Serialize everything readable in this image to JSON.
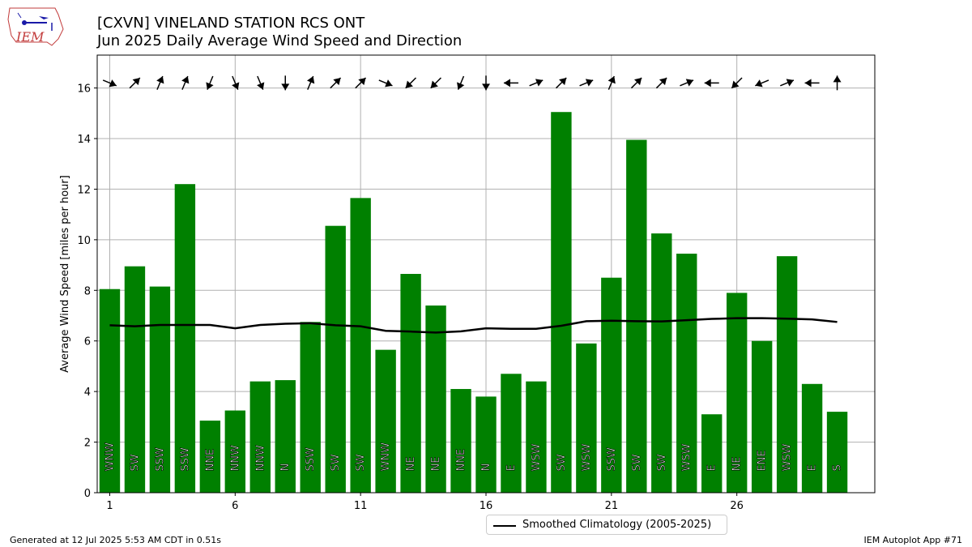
{
  "header": {
    "title_line1": "[CXVN] VINELAND STATION RCS  ONT",
    "title_line2": "Jun 2025 Daily Average Wind Speed and Direction",
    "logo_text": "IEM"
  },
  "footer": {
    "left": "Generated at 12 Jul 2025 5:53 AM CDT in 0.51s",
    "right": "IEM Autoplot App #71"
  },
  "colors": {
    "bar": "#008000",
    "line": "#000000",
    "grid": "#b0b0b0"
  },
  "chart_data": {
    "type": "bar",
    "ylabel": "Average Wind Speed [miles per hour]",
    "xlabel": "",
    "ylim": [
      0,
      17.3
    ],
    "xlim": [
      0.5,
      31.5
    ],
    "yticks": [
      0,
      2,
      4,
      6,
      8,
      10,
      12,
      14,
      16
    ],
    "xticks": [
      1,
      6,
      11,
      16,
      21,
      26
    ],
    "grid": true,
    "legend_placement": "bottom-center",
    "days": [
      1,
      2,
      3,
      4,
      5,
      6,
      7,
      8,
      9,
      10,
      11,
      12,
      13,
      14,
      15,
      16,
      17,
      18,
      19,
      20,
      21,
      22,
      23,
      24,
      25,
      26,
      27,
      28,
      29,
      30
    ],
    "values": [
      8.05,
      8.95,
      8.15,
      12.2,
      2.85,
      3.25,
      4.4,
      4.45,
      6.75,
      10.55,
      11.65,
      5.65,
      8.65,
      7.4,
      4.1,
      3.8,
      4.7,
      4.4,
      15.05,
      5.9,
      8.5,
      13.95,
      10.25,
      9.45,
      3.1,
      7.9,
      6.0,
      9.35,
      4.3,
      3.2
    ],
    "directions": [
      "WNW",
      "SW",
      "SSW",
      "SSW",
      "NNE",
      "NNW",
      "NNW",
      "N",
      "SSW",
      "SW",
      "SW",
      "WNW",
      "NE",
      "NE",
      "NNE",
      "N",
      "E",
      "WSW",
      "SW",
      "WSW",
      "SSW",
      "SW",
      "SW",
      "WSW",
      "E",
      "NE",
      "ENE",
      "WSW",
      "E",
      "S"
    ],
    "series": [
      {
        "name": "Smoothed Climatology (2005-2025)",
        "type": "line",
        "values": [
          6.62,
          6.58,
          6.63,
          6.63,
          6.63,
          6.5,
          6.63,
          6.68,
          6.7,
          6.62,
          6.58,
          6.4,
          6.37,
          6.33,
          6.38,
          6.5,
          6.48,
          6.48,
          6.6,
          6.78,
          6.8,
          6.78,
          6.77,
          6.82,
          6.87,
          6.9,
          6.9,
          6.88,
          6.85,
          6.75
        ]
      }
    ]
  }
}
